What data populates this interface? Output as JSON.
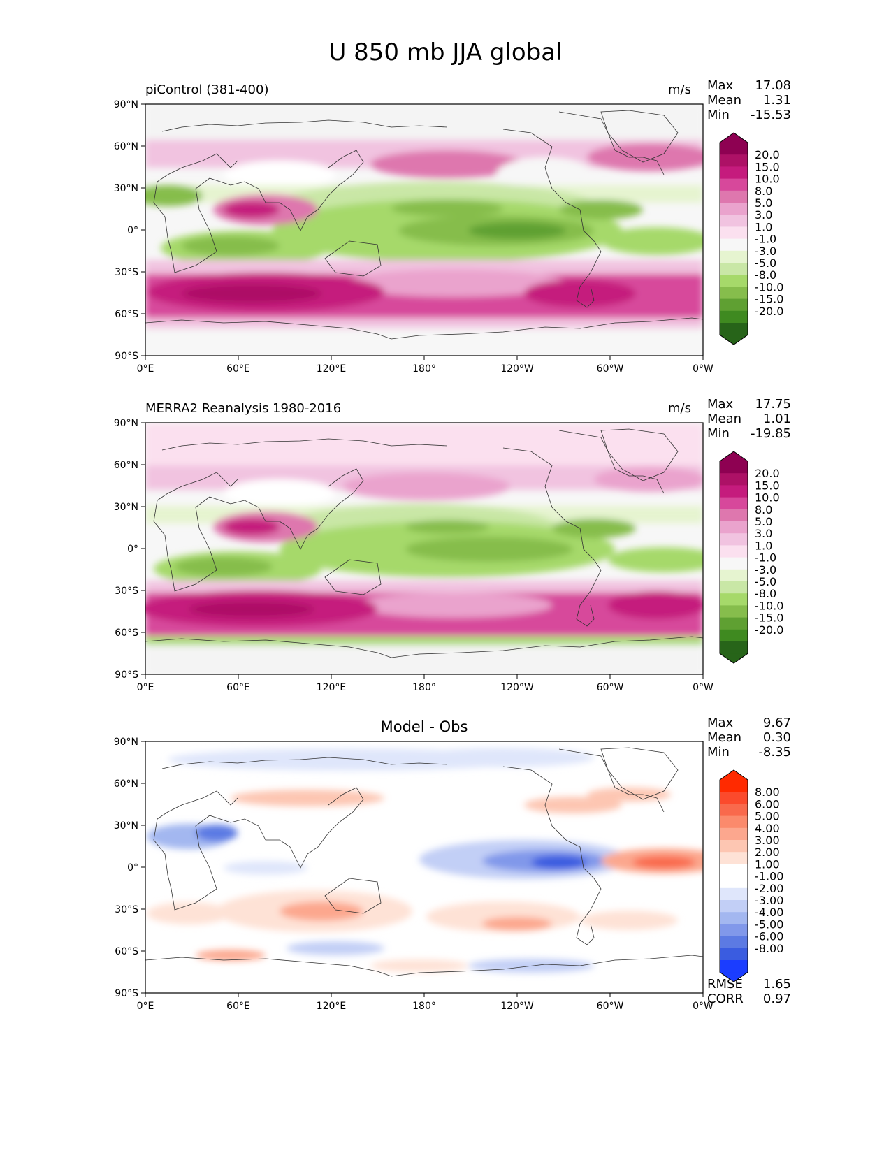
{
  "title": "U 850 mb JJA global",
  "axes": {
    "lat_ticks": [
      "90°N",
      "60°N",
      "30°N",
      "0°",
      "30°S",
      "60°S",
      "90°S"
    ],
    "lon_ticks": [
      "0°E",
      "60°E",
      "120°E",
      "180°",
      "120°W",
      "60°W",
      "0°W"
    ]
  },
  "panels": [
    {
      "title": "piControl (381-400)",
      "units": "m/s",
      "stats": [
        {
          "label": "Max",
          "value": "17.08"
        },
        {
          "label": "Mean",
          "value": "1.31"
        },
        {
          "label": "Min",
          "value": "-15.53"
        }
      ],
      "colorbar": [
        "20.0",
        "15.0",
        "10.0",
        "8.0",
        "5.0",
        "3.0",
        "1.0",
        "-1.0",
        "-3.0",
        "-5.0",
        "-8.0",
        "-10.0",
        "-15.0",
        "-20.0"
      ],
      "colors": [
        "#8e0152",
        "#ad1166",
        "#c51b7d",
        "#d7489b",
        "#de77ae",
        "#eaa3cd",
        "#f1c3e0",
        "#fbe0ef",
        "#f7f7f7",
        "#e6f4d0",
        "#c9e7a6",
        "#a6d96a",
        "#86bd4c",
        "#5fa032",
        "#3f8a20",
        "#276419"
      ],
      "extend_top": "#8e0152",
      "extend_bottom": "#276419"
    },
    {
      "title": "MERRA2 Reanalysis 1980-2016",
      "units": "m/s",
      "stats": [
        {
          "label": "Max",
          "value": "17.75"
        },
        {
          "label": "Mean",
          "value": "1.01"
        },
        {
          "label": "Min",
          "value": "-19.85"
        }
      ],
      "colorbar": [
        "20.0",
        "15.0",
        "10.0",
        "8.0",
        "5.0",
        "3.0",
        "1.0",
        "-1.0",
        "-3.0",
        "-5.0",
        "-8.0",
        "-10.0",
        "-15.0",
        "-20.0"
      ],
      "colors": [
        "#8e0152",
        "#ad1166",
        "#c51b7d",
        "#d7489b",
        "#de77ae",
        "#eaa3cd",
        "#f1c3e0",
        "#fbe0ef",
        "#f7f7f7",
        "#e6f4d0",
        "#c9e7a6",
        "#a6d96a",
        "#86bd4c",
        "#5fa032",
        "#3f8a20",
        "#276419"
      ],
      "extend_top": "#8e0152",
      "extend_bottom": "#276419"
    },
    {
      "title": "Model - Obs",
      "units": "",
      "stats": [
        {
          "label": "Max",
          "value": "9.67"
        },
        {
          "label": "Mean",
          "value": "0.30"
        },
        {
          "label": "Min",
          "value": "-8.35"
        }
      ],
      "colorbar": [
        "8.00",
        "6.00",
        "5.00",
        "4.00",
        "3.00",
        "2.00",
        "1.00",
        "-1.00",
        "-2.00",
        "-3.00",
        "-4.00",
        "-5.00",
        "-6.00",
        "-8.00"
      ],
      "colors": [
        "#ff2a00",
        "#fb4a2c",
        "#f9694c",
        "#fb8a6c",
        "#fca78e",
        "#fdc6b2",
        "#fee2d6",
        "#ffffff",
        "#ffffff",
        "#dfe6fb",
        "#c2cff6",
        "#a3b7f0",
        "#8198ea",
        "#5c7ae3",
        "#3a5ce0",
        "#1b3dff"
      ],
      "extend_top": "#ff2a00",
      "extend_bottom": "#1b3dff",
      "metrics": [
        {
          "label": "RMSE",
          "value": "1.65"
        },
        {
          "label": "CORR",
          "value": "0.97"
        }
      ]
    }
  ]
}
